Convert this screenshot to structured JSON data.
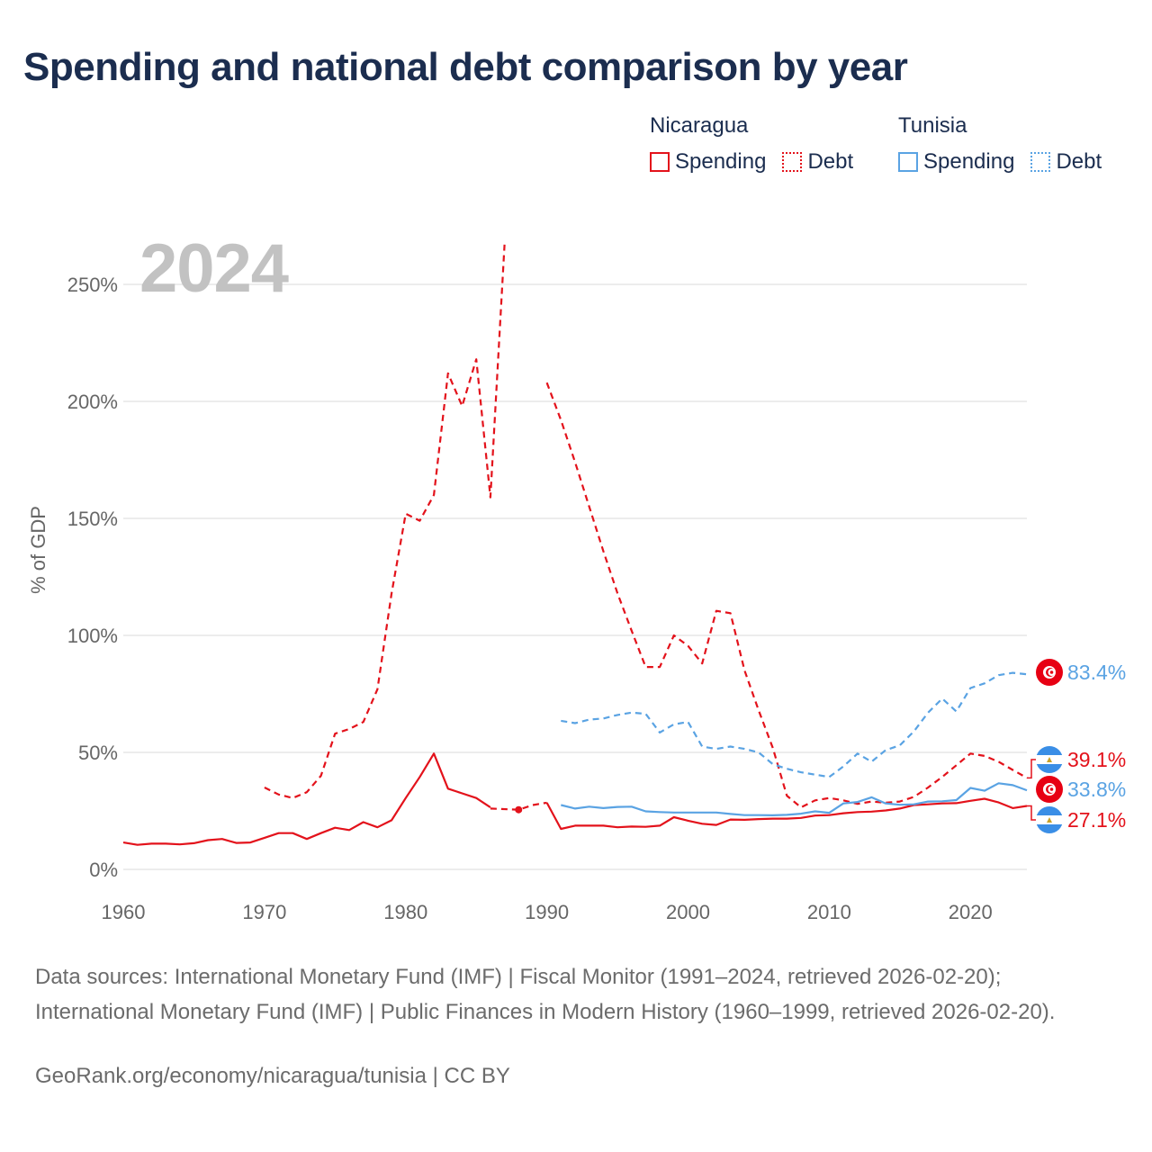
{
  "title": "Spending and national debt comparison by year",
  "year_stamp": "2024",
  "legend": {
    "groups": [
      {
        "name": "Nicaragua",
        "color": "#e3121b",
        "items": [
          {
            "label": "Spending",
            "style": "solid"
          },
          {
            "label": "Debt",
            "style": "dotted"
          }
        ]
      },
      {
        "name": "Tunisia",
        "color": "#5aa3e3",
        "items": [
          {
            "label": "Spending",
            "style": "solid"
          },
          {
            "label": "Debt",
            "style": "dotted"
          }
        ]
      }
    ]
  },
  "footer": {
    "sources": "Data sources: International Monetary Fund (IMF) | Fiscal Monitor (1991–2024, retrieved 2026-02-20); International Monetary Fund (IMF) | Public Finances in Modern History (1960–1999, retrieved 2026-02-20).",
    "link": "GeoRank.org/economy/nicaragua/tunisia | CC BY"
  },
  "chart_data": {
    "type": "line",
    "title": "Spending and national debt comparison by year",
    "ylabel": "% of GDP",
    "xlabel": "",
    "xlim": [
      1960,
      2024
    ],
    "ylim": [
      0,
      260
    ],
    "xticks": [
      1960,
      1970,
      1980,
      1990,
      2000,
      2010,
      2020
    ],
    "yticks": [
      0,
      50,
      100,
      150,
      200,
      250
    ],
    "ytick_labels": [
      "0%",
      "50%",
      "100%",
      "150%",
      "200%",
      "250%"
    ],
    "series": [
      {
        "name": "Nicaragua Debt",
        "country": "Nicaragua",
        "kind": "debt",
        "color": "#e3121b",
        "dash": "dashed",
        "points": [
          [
            1970,
            35
          ],
          [
            1971,
            32
          ],
          [
            1972,
            30.5
          ],
          [
            1973,
            33
          ],
          [
            1974,
            40
          ],
          [
            1975,
            58
          ],
          [
            1976,
            60
          ],
          [
            1977,
            63
          ],
          [
            1978,
            77
          ],
          [
            1979,
            118
          ],
          [
            1980,
            152
          ],
          [
            1981,
            149
          ],
          [
            1982,
            160
          ],
          [
            1983,
            212
          ],
          [
            1984,
            198
          ],
          [
            1985,
            218
          ],
          [
            1986,
            159
          ],
          [
            1987,
            267
          ],
          [
            1988,
            null
          ],
          [
            1990,
            208
          ],
          [
            1991,
            192
          ],
          [
            1992,
            174
          ],
          [
            1993,
            155
          ],
          [
            1994,
            136
          ],
          [
            1995,
            118
          ],
          [
            1996,
            102
          ],
          [
            1997,
            86.5
          ],
          [
            1998,
            86.5
          ],
          [
            1999,
            100
          ],
          [
            2000,
            95.5
          ],
          [
            2001,
            88
          ],
          [
            2002,
            110.5
          ],
          [
            2003,
            109.5
          ],
          [
            2004,
            85
          ],
          [
            2005,
            68
          ],
          [
            2006,
            52
          ],
          [
            2007,
            31.5
          ],
          [
            2008,
            26.5
          ],
          [
            2009,
            29.5
          ],
          [
            2010,
            30.5
          ],
          [
            2011,
            29.5
          ],
          [
            2012,
            28
          ],
          [
            2013,
            29
          ],
          [
            2014,
            28.5
          ],
          [
            2015,
            29
          ],
          [
            2016,
            31
          ],
          [
            2017,
            35
          ],
          [
            2018,
            39.5
          ],
          [
            2019,
            44.5
          ],
          [
            2020,
            49.5
          ],
          [
            2021,
            48.5
          ],
          [
            2022,
            46
          ],
          [
            2023,
            42.5
          ],
          [
            2024,
            39.1
          ]
        ],
        "gap_markers": [
          [
            1988,
            25.5
          ]
        ],
        "gap_bridge": [
          [
            1986,
            26
          ],
          [
            1988,
            25.5
          ],
          [
            1989,
            27.5
          ],
          [
            1990,
            28.5
          ]
        ],
        "end_label": "39.1%"
      },
      {
        "name": "Nicaragua Spending",
        "country": "Nicaragua",
        "kind": "spending",
        "color": "#e3121b",
        "dash": "solid",
        "points": [
          [
            1960,
            11.5
          ],
          [
            1961,
            10.5
          ],
          [
            1962,
            11
          ],
          [
            1963,
            11
          ],
          [
            1964,
            10.7
          ],
          [
            1965,
            11.2
          ],
          [
            1966,
            12.5
          ],
          [
            1967,
            13
          ],
          [
            1968,
            11.3
          ],
          [
            1969,
            11.5
          ],
          [
            1970,
            13.5
          ],
          [
            1971,
            15.5
          ],
          [
            1972,
            15.5
          ],
          [
            1973,
            13
          ],
          [
            1974,
            15.5
          ],
          [
            1975,
            17.8
          ],
          [
            1976,
            16.8
          ],
          [
            1977,
            20.2
          ],
          [
            1978,
            18
          ],
          [
            1979,
            21
          ],
          [
            1980,
            30.5
          ],
          [
            1981,
            39.5
          ],
          [
            1982,
            49.5
          ],
          [
            1983,
            34.5
          ],
          [
            1984,
            32.5
          ],
          [
            1985,
            30.5
          ],
          [
            1986,
            26.5
          ],
          [
            1987,
            null
          ],
          [
            1990,
            28.5
          ],
          [
            1991,
            17.3
          ],
          [
            1992,
            18.7
          ],
          [
            1993,
            18.7
          ],
          [
            1994,
            18.7
          ],
          [
            1995,
            18
          ],
          [
            1996,
            18.3
          ],
          [
            1997,
            18.2
          ],
          [
            1998,
            18.7
          ],
          [
            1999,
            22.3
          ],
          [
            2000,
            20.8
          ],
          [
            2001,
            19.5
          ],
          [
            2002,
            19
          ],
          [
            2003,
            21.3
          ],
          [
            2004,
            21.2
          ],
          [
            2005,
            21.5
          ],
          [
            2006,
            21.7
          ],
          [
            2007,
            21.7
          ],
          [
            2008,
            22
          ],
          [
            2009,
            23
          ],
          [
            2010,
            23.2
          ],
          [
            2011,
            24
          ],
          [
            2012,
            24.5
          ],
          [
            2013,
            24.7
          ],
          [
            2014,
            25.2
          ],
          [
            2015,
            26
          ],
          [
            2016,
            27.5
          ],
          [
            2017,
            27.8
          ],
          [
            2018,
            28.2
          ],
          [
            2019,
            28.3
          ],
          [
            2020,
            29.3
          ],
          [
            2021,
            30.2
          ],
          [
            2022,
            28.6
          ],
          [
            2023,
            26.2
          ],
          [
            2024,
            27.1
          ]
        ],
        "end_label": "27.1%"
      },
      {
        "name": "Tunisia Debt",
        "country": "Tunisia",
        "kind": "debt",
        "color": "#5aa3e3",
        "dash": "dashed",
        "points": [
          [
            1991,
            63.5
          ],
          [
            1992,
            62.5
          ],
          [
            1993,
            64
          ],
          [
            1994,
            64.5
          ],
          [
            1995,
            66
          ],
          [
            1996,
            67
          ],
          [
            1997,
            66.5
          ],
          [
            1998,
            58.5
          ],
          [
            1999,
            62
          ],
          [
            2000,
            63
          ],
          [
            2001,
            52.5
          ],
          [
            2002,
            51.5
          ],
          [
            2003,
            52.5
          ],
          [
            2004,
            51.5
          ],
          [
            2005,
            50
          ],
          [
            2006,
            45
          ],
          [
            2007,
            43
          ],
          [
            2008,
            41.5
          ],
          [
            2009,
            40.5
          ],
          [
            2010,
            39.5
          ],
          [
            2011,
            44
          ],
          [
            2012,
            49.5
          ],
          [
            2013,
            46
          ],
          [
            2014,
            51
          ],
          [
            2015,
            53
          ],
          [
            2016,
            59
          ],
          [
            2017,
            67
          ],
          [
            2018,
            73
          ],
          [
            2019,
            67.5
          ],
          [
            2020,
            77.5
          ],
          [
            2021,
            79.5
          ],
          [
            2022,
            83
          ],
          [
            2023,
            84
          ],
          [
            2024,
            83.4
          ]
        ],
        "end_label": "83.4%"
      },
      {
        "name": "Tunisia Spending",
        "country": "Tunisia",
        "kind": "spending",
        "color": "#5aa3e3",
        "dash": "solid",
        "points": [
          [
            1991,
            27.5
          ],
          [
            1992,
            26
          ],
          [
            1993,
            26.8
          ],
          [
            1994,
            26.2
          ],
          [
            1995,
            26.7
          ],
          [
            1996,
            26.8
          ],
          [
            1997,
            24.8
          ],
          [
            1998,
            24.5
          ],
          [
            1999,
            24.3
          ],
          [
            2000,
            24.3
          ],
          [
            2001,
            24.3
          ],
          [
            2002,
            24.3
          ],
          [
            2003,
            23.7
          ],
          [
            2004,
            23.2
          ],
          [
            2005,
            23.2
          ],
          [
            2006,
            23.1
          ],
          [
            2007,
            23.3
          ],
          [
            2008,
            23.8
          ],
          [
            2009,
            24.8
          ],
          [
            2010,
            24.2
          ],
          [
            2011,
            28.2
          ],
          [
            2012,
            28.8
          ],
          [
            2013,
            30.8
          ],
          [
            2014,
            28.2
          ],
          [
            2015,
            27.6
          ],
          [
            2016,
            27.8
          ],
          [
            2017,
            29
          ],
          [
            2018,
            29.1
          ],
          [
            2019,
            29.6
          ],
          [
            2020,
            34.8
          ],
          [
            2021,
            33.6
          ],
          [
            2022,
            36.8
          ],
          [
            2023,
            36
          ],
          [
            2024,
            33.8
          ]
        ],
        "end_label": "33.8%"
      }
    ]
  }
}
